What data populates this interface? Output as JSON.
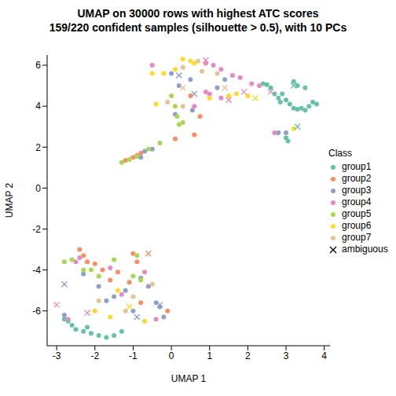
{
  "chart_data": {
    "type": "scatter",
    "title": "UMAP on 30000 rows with highest ATC scores\n159/220 confident samples (silhouette > 0.5), with 10 PCs",
    "x_label": "UMAP 1",
    "y_label": "UMAP 2",
    "xlim": [
      -3.25,
      4.15
    ],
    "ylim": [
      -7.7,
      6.5
    ],
    "xticks": [
      -3,
      -2,
      -1,
      0,
      1,
      2,
      3,
      4
    ],
    "yticks": [
      -6,
      -4,
      -2,
      0,
      2,
      4,
      6
    ],
    "grid": false,
    "legend": "right",
    "legend_title": "Class",
    "series": [
      {
        "name": "group1",
        "color": "#66C2A5",
        "marker": "circle",
        "x": [
          2.4,
          2.5,
          2.6,
          2.7,
          2.8,
          2.85,
          2.9,
          3.0,
          3.1,
          3.2,
          3.3,
          3.4,
          3.5,
          3.6,
          3.7,
          3.8,
          3.3,
          3.5,
          3.2,
          3.0,
          3.05,
          -2.8,
          -2.6,
          -2.5,
          -2.3,
          -2.1,
          -1.9,
          -1.7,
          -1.5,
          -1.3,
          -2.7,
          -2.2
        ],
        "y": [
          5.1,
          5.05,
          4.9,
          4.6,
          4.4,
          4.2,
          4.6,
          4.3,
          4.1,
          3.9,
          3.85,
          3.9,
          3.8,
          4.0,
          4.2,
          4.1,
          5.0,
          4.9,
          5.2,
          2.45,
          2.3,
          -6.4,
          -6.7,
          -6.9,
          -7.0,
          -7.1,
          -7.2,
          -7.3,
          -7.2,
          -7.0,
          -6.5,
          -6.8
        ]
      },
      {
        "name": "group2",
        "color": "#FC8D62",
        "marker": "circle",
        "x": [
          -1.2,
          -1.0,
          -0.9,
          -0.8,
          0.1,
          0.6,
          -2.4,
          -2.3,
          -2.2,
          -1.8,
          -1.6,
          -1.0,
          -0.9,
          -1.1,
          -0.1,
          -0.8,
          -2.0,
          -1.4,
          0.5,
          0.75
        ],
        "y": [
          1.35,
          1.5,
          1.6,
          1.7,
          2.4,
          2.6,
          -3.0,
          -3.3,
          -3.6,
          -4.0,
          -4.5,
          -3.2,
          -3.6,
          -4.6,
          -6.0,
          -5.6,
          -3.7,
          -4.1,
          4.5,
          3.5
        ]
      },
      {
        "name": "group3",
        "color": "#8DA0CB",
        "marker": "circle",
        "x": [
          -0.7,
          -0.8,
          -0.5,
          0.0,
          0.2,
          0.5,
          1.2,
          1.4,
          2.8,
          3.0,
          -2.3,
          -1.9,
          -1.5,
          -1.2,
          -0.8,
          -0.6,
          -0.4,
          -0.3,
          -1.0,
          -2.8,
          -0.2,
          -1.7,
          0.1,
          0.55
        ],
        "y": [
          1.8,
          1.5,
          1.9,
          5.6,
          5.0,
          5.3,
          4.9,
          5.3,
          2.7,
          2.7,
          -4.2,
          -4.8,
          -5.3,
          -5.0,
          -4.4,
          -4.8,
          -5.6,
          -5.8,
          -6.0,
          -6.2,
          -6.3,
          -5.5,
          3.6,
          3.8
        ]
      },
      {
        "name": "group4",
        "color": "#E78AC3",
        "marker": "circle",
        "x": [
          0.9,
          1.1,
          1.3,
          1.6,
          1.8,
          2.1,
          2.3,
          0.9,
          1.0,
          1.3,
          2.7,
          -2.5,
          -2.4,
          -1.3,
          -0.4,
          -2.7,
          -1.6,
          -0.7,
          0.6,
          -0.5
        ],
        "y": [
          6.1,
          6.0,
          5.8,
          5.5,
          5.4,
          5.1,
          5.0,
          4.7,
          4.6,
          4.4,
          2.7,
          -3.6,
          -3.4,
          -5.2,
          -6.4,
          -6.4,
          -3.9,
          -4.1,
          4.0,
          6.0
        ]
      },
      {
        "name": "group5",
        "color": "#A6D854",
        "marker": "circle",
        "x": [
          -1.3,
          -1.1,
          -0.9,
          -0.6,
          -0.3,
          0.2,
          0.3,
          0.15,
          0.0,
          -2.8,
          -2.6,
          -2.1,
          -1.9,
          -1.5,
          -1.0,
          -0.8,
          -2.3,
          -0.9,
          0.1
        ],
        "y": [
          1.25,
          1.4,
          1.55,
          1.9,
          2.2,
          3.1,
          3.2,
          3.5,
          4.5,
          -3.6,
          -3.5,
          -4.0,
          -4.3,
          -3.5,
          -4.3,
          -4.5,
          -4.0,
          -3.3,
          4.0
        ]
      },
      {
        "name": "group6",
        "color": "#FFD92F",
        "marker": "circle",
        "x": [
          0.3,
          0.5,
          0.6,
          -0.2,
          0.1,
          -0.5,
          1.0,
          1.5,
          1.7,
          2.0,
          3.2,
          -0.4,
          -2.0,
          -1.6,
          -0.7,
          -1.4
        ],
        "y": [
          6.3,
          6.2,
          6.1,
          5.6,
          5.8,
          5.6,
          4.4,
          4.5,
          4.6,
          4.5,
          2.9,
          4.1,
          -6.0,
          -6.3,
          -6.5,
          -5.0
        ]
      },
      {
        "name": "group7",
        "color": "#E5C494",
        "marker": "circle",
        "x": [
          0.3,
          0.7,
          0.8,
          1.2,
          -0.1,
          0.3,
          -1.0,
          -1.9,
          -1.2,
          -0.5
        ],
        "y": [
          5.9,
          6.2,
          5.7,
          5.6,
          4.2,
          4.0,
          -5.3,
          -5.5,
          -6.0,
          -4.7
        ]
      },
      {
        "name": "ambiguous",
        "color": "#000000",
        "marker": "x",
        "x": [
          0.9,
          1.4,
          1.9,
          2.2,
          0.2,
          0.6,
          1.5,
          3.2,
          3.3,
          2.6,
          -3.0,
          -2.2,
          -1.1,
          -0.9,
          -0.3,
          -0.6,
          -2.8,
          0.3
        ],
        "y": [
          6.25,
          4.9,
          4.7,
          4.4,
          5.5,
          4.6,
          4.3,
          5.0,
          3.0,
          4.7,
          -5.7,
          -6.1,
          -5.8,
          -6.3,
          -5.7,
          -3.2,
          -4.7,
          4.9
        ],
        "colors": [
          "#E78AC3",
          "#E5C494",
          "#E78AC3",
          "#FFD92F",
          "#8DA0CB",
          "#8DA0CB",
          "#E78AC3",
          "#66C2A5",
          "#66C2A5",
          "#E78AC3",
          "#E78AC3",
          "#E78AC3",
          "#FFD92F",
          "#8DA0CB",
          "#8DA0CB",
          "#FC8D62",
          "#8DA0CB",
          "#E5C494"
        ]
      }
    ]
  }
}
